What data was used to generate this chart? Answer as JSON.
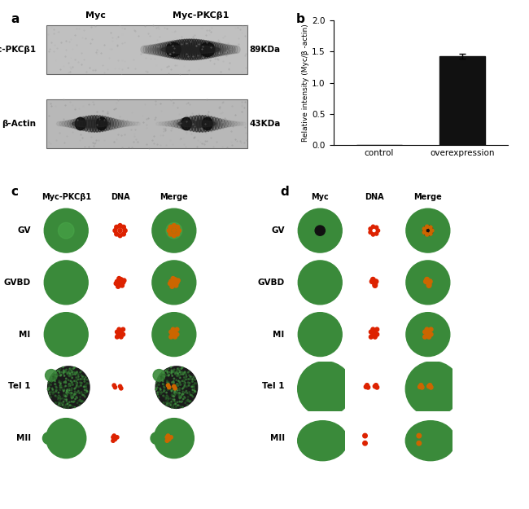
{
  "panel_a": {
    "label": "a",
    "lane_labels": [
      "Myc",
      "Myc-PKCβ1"
    ],
    "row_labels": [
      "Myc-PKCβ1",
      "β-Actin"
    ],
    "band_labels": [
      "89KDa",
      "43KDa"
    ]
  },
  "panel_b": {
    "label": "b",
    "categories": [
      "control",
      "overexpression"
    ],
    "values": [
      0.0,
      1.42
    ],
    "error": [
      0.0,
      0.04
    ],
    "bar_color": "#111111",
    "ylabel": "Relative intensity (Myc/β -actin)",
    "ylim": [
      0.0,
      2.0
    ],
    "yticks": [
      0.0,
      0.5,
      1.0,
      1.5,
      2.0
    ]
  },
  "panel_c": {
    "label": "c",
    "col_headers": [
      "Myc-PKCβ1",
      "DNA",
      "Merge"
    ],
    "row_labels": [
      "GV",
      "GVBD",
      "MI",
      "Tel 1",
      "MII"
    ]
  },
  "panel_d": {
    "label": "d",
    "col_headers": [
      "Myc",
      "DNA",
      "Merge"
    ],
    "row_labels": [
      "GV",
      "GVBD",
      "MI",
      "Tel 1",
      "MII"
    ]
  },
  "colors": {
    "bg": "#ffffff",
    "cell_green": "#3a8a3a",
    "cell_green_dark": "#2a6a2a",
    "cell_green_gv": "#4a9a4a",
    "dna_red": "#dd2200",
    "orange": "#cc6600",
    "wb_bg": "#b8b8b8",
    "wb_bg_dark": "#a0a0a0",
    "band_dark": "#1a1a1a"
  }
}
